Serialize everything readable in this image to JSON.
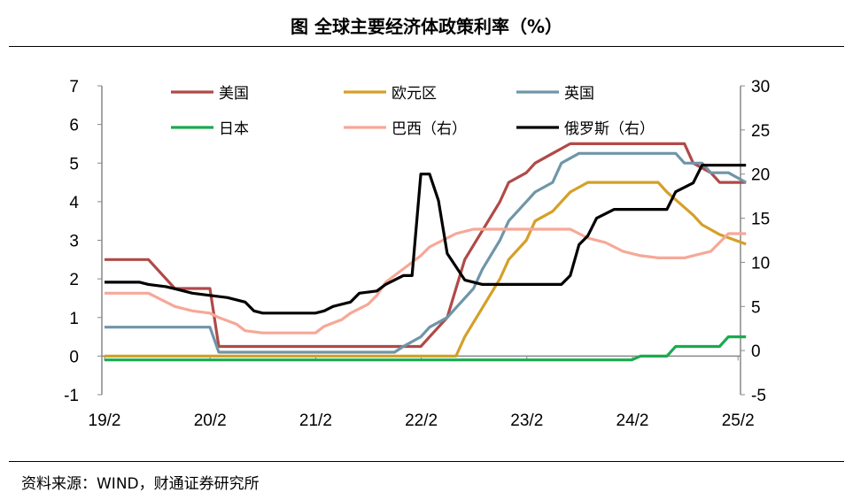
{
  "title": "图  全球主要经济体政策利率（%）",
  "source": "资料来源：WIND，财通证券研究所",
  "chart_data": {
    "type": "line",
    "title": "图  全球主要经济体政策利率（%）",
    "x_ticks": [
      "19/2",
      "20/2",
      "21/2",
      "22/2",
      "23/2",
      "24/2",
      "25/2"
    ],
    "y_left": {
      "range": [
        -1,
        7
      ],
      "ticks": [
        "-1",
        "0",
        "1",
        "2",
        "3",
        "4",
        "5",
        "6",
        "7"
      ]
    },
    "y_right": {
      "range": [
        -5,
        30
      ],
      "ticks": [
        "-5",
        "0",
        "5",
        "10",
        "15",
        "20",
        "25",
        "30"
      ]
    },
    "grid": false,
    "legend": "top",
    "series": [
      {
        "name": "美国",
        "axis": "left",
        "color": "#B04A48",
        "points": [
          [
            "2019-02",
            2.5
          ],
          [
            "2019-07",
            2.5
          ],
          [
            "2019-08",
            2.25
          ],
          [
            "2019-09",
            2.0
          ],
          [
            "2019-10",
            1.75
          ],
          [
            "2020-02",
            1.75
          ],
          [
            "2020-03",
            0.25
          ],
          [
            "2022-02",
            0.25
          ],
          [
            "2022-03",
            0.5
          ],
          [
            "2022-05",
            1.0
          ],
          [
            "2022-06",
            1.75
          ],
          [
            "2022-07",
            2.5
          ],
          [
            "2022-09",
            3.25
          ],
          [
            "2022-11",
            4.0
          ],
          [
            "2022-12",
            4.5
          ],
          [
            "2023-02",
            4.75
          ],
          [
            "2023-03",
            5.0
          ],
          [
            "2023-05",
            5.25
          ],
          [
            "2023-07",
            5.5
          ],
          [
            "2024-08",
            5.5
          ],
          [
            "2024-09",
            5.0
          ],
          [
            "2024-11",
            4.75
          ],
          [
            "2024-12",
            4.5
          ],
          [
            "2025-03",
            4.5
          ]
        ]
      },
      {
        "name": "欧元区",
        "axis": "left",
        "color": "#D4A028",
        "points": [
          [
            "2019-02",
            0
          ],
          [
            "2022-06",
            0
          ],
          [
            "2022-07",
            0.5
          ],
          [
            "2022-09",
            1.25
          ],
          [
            "2022-11",
            2.0
          ],
          [
            "2022-12",
            2.5
          ],
          [
            "2023-02",
            3.0
          ],
          [
            "2023-03",
            3.5
          ],
          [
            "2023-05",
            3.75
          ],
          [
            "2023-06",
            4.0
          ],
          [
            "2023-07",
            4.25
          ],
          [
            "2023-09",
            4.5
          ],
          [
            "2024-05",
            4.5
          ],
          [
            "2024-06",
            4.25
          ],
          [
            "2024-09",
            3.65
          ],
          [
            "2024-10",
            3.4
          ],
          [
            "2024-12",
            3.15
          ],
          [
            "2025-03",
            2.9
          ]
        ]
      },
      {
        "name": "英国",
        "axis": "left",
        "color": "#6F96A8",
        "points": [
          [
            "2019-02",
            0.75
          ],
          [
            "2020-02",
            0.75
          ],
          [
            "2020-03",
            0.1
          ],
          [
            "2021-11",
            0.1
          ],
          [
            "2021-12",
            0.25
          ],
          [
            "2022-02",
            0.5
          ],
          [
            "2022-03",
            0.75
          ],
          [
            "2022-05",
            1.0
          ],
          [
            "2022-06",
            1.25
          ],
          [
            "2022-08",
            1.75
          ],
          [
            "2022-09",
            2.25
          ],
          [
            "2022-11",
            3.0
          ],
          [
            "2022-12",
            3.5
          ],
          [
            "2023-02",
            4.0
          ],
          [
            "2023-03",
            4.25
          ],
          [
            "2023-05",
            4.5
          ],
          [
            "2023-06",
            5.0
          ],
          [
            "2023-08",
            5.25
          ],
          [
            "2024-07",
            5.25
          ],
          [
            "2024-08",
            5.0
          ],
          [
            "2024-10",
            5.0
          ],
          [
            "2024-11",
            4.75
          ],
          [
            "2025-01",
            4.75
          ],
          [
            "2025-03",
            4.5
          ]
        ]
      },
      {
        "name": "日本",
        "axis": "left",
        "color": "#1BAA4F",
        "points": [
          [
            "2019-02",
            -0.1
          ],
          [
            "2024-02",
            -0.1
          ],
          [
            "2024-03",
            0.0
          ],
          [
            "2024-06",
            0.0
          ],
          [
            "2024-07",
            0.25
          ],
          [
            "2024-12",
            0.25
          ],
          [
            "2025-01",
            0.5
          ],
          [
            "2025-03",
            0.5
          ]
        ]
      },
      {
        "name": "巴西（右）",
        "axis": "right",
        "color": "#F6A898",
        "points": [
          [
            "2019-02",
            6.5
          ],
          [
            "2019-07",
            6.5
          ],
          [
            "2019-08",
            6.0
          ],
          [
            "2019-09",
            5.5
          ],
          [
            "2019-10",
            5.0
          ],
          [
            "2019-12",
            4.5
          ],
          [
            "2020-02",
            4.25
          ],
          [
            "2020-03",
            3.75
          ],
          [
            "2020-05",
            3.0
          ],
          [
            "2020-06",
            2.25
          ],
          [
            "2020-08",
            2.0
          ],
          [
            "2021-02",
            2.0
          ],
          [
            "2021-03",
            2.75
          ],
          [
            "2021-05",
            3.5
          ],
          [
            "2021-06",
            4.25
          ],
          [
            "2021-08",
            5.25
          ],
          [
            "2021-09",
            6.25
          ],
          [
            "2021-10",
            7.75
          ],
          [
            "2021-12",
            9.25
          ],
          [
            "2022-02",
            10.75
          ],
          [
            "2022-03",
            11.75
          ],
          [
            "2022-05",
            12.75
          ],
          [
            "2022-06",
            13.25
          ],
          [
            "2022-08",
            13.75
          ],
          [
            "2023-07",
            13.75
          ],
          [
            "2023-08",
            13.25
          ],
          [
            "2023-09",
            12.75
          ],
          [
            "2023-11",
            12.25
          ],
          [
            "2023-12",
            11.75
          ],
          [
            "2024-01",
            11.25
          ],
          [
            "2024-03",
            10.75
          ],
          [
            "2024-05",
            10.5
          ],
          [
            "2024-08",
            10.5
          ],
          [
            "2024-09",
            10.75
          ],
          [
            "2024-11",
            11.25
          ],
          [
            "2024-12",
            12.25
          ],
          [
            "2025-01",
            13.25
          ],
          [
            "2025-03",
            13.25
          ]
        ]
      },
      {
        "name": "俄罗斯（右）",
        "axis": "right",
        "color": "#000000",
        "points": [
          [
            "2019-02",
            7.75
          ],
          [
            "2019-06",
            7.75
          ],
          [
            "2019-07",
            7.5
          ],
          [
            "2019-09",
            7.25
          ],
          [
            "2019-10",
            7.0
          ],
          [
            "2019-12",
            6.5
          ],
          [
            "2020-02",
            6.25
          ],
          [
            "2020-04",
            6.0
          ],
          [
            "2020-06",
            5.5
          ],
          [
            "2020-07",
            4.5
          ],
          [
            "2020-08",
            4.25
          ],
          [
            "2021-02",
            4.25
          ],
          [
            "2021-03",
            4.5
          ],
          [
            "2021-04",
            5.0
          ],
          [
            "2021-06",
            5.5
          ],
          [
            "2021-07",
            6.5
          ],
          [
            "2021-09",
            6.75
          ],
          [
            "2021-10",
            7.5
          ],
          [
            "2021-12",
            8.5
          ],
          [
            "2022-01",
            8.5
          ],
          [
            "2022-02",
            20.0
          ],
          [
            "2022-03",
            20.0
          ],
          [
            "2022-04",
            17.0
          ],
          [
            "2022-05",
            11.0
          ],
          [
            "2022-06",
            9.5
          ],
          [
            "2022-07",
            8.0
          ],
          [
            "2022-09",
            7.5
          ],
          [
            "2023-06",
            7.5
          ],
          [
            "2023-07",
            8.5
          ],
          [
            "2023-08",
            12.0
          ],
          [
            "2023-09",
            13.0
          ],
          [
            "2023-10",
            15.0
          ],
          [
            "2023-12",
            16.0
          ],
          [
            "2024-06",
            16.0
          ],
          [
            "2024-07",
            18.0
          ],
          [
            "2024-09",
            19.0
          ],
          [
            "2024-10",
            21.0
          ],
          [
            "2025-03",
            21.0
          ]
        ]
      }
    ]
  }
}
